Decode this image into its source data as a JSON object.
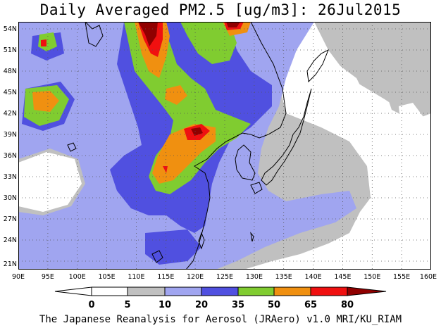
{
  "title": "Daily Averaged PM2.5 [ug/m3]: 26Jul2015",
  "footer": "The Japanese Reanalysis for Aerosol (JRAero) v1.0 MRI/KU_RIAM",
  "map": {
    "lon_range": [
      90,
      160
    ],
    "lat_range": [
      20,
      55
    ],
    "lon_labels": [
      "90E",
      "95E",
      "100E",
      "105E",
      "110E",
      "115E",
      "120E",
      "125E",
      "130E",
      "135E",
      "140E",
      "145E",
      "150E",
      "155E",
      "160E"
    ],
    "lat_labels": [
      "21N",
      "24N",
      "27N",
      "30N",
      "33N",
      "36N",
      "39N",
      "42N",
      "45N",
      "48N",
      "51N",
      "54N"
    ],
    "gridlines": "dotted"
  },
  "colorbar": {
    "levels": [
      "0",
      "5",
      "10",
      "20",
      "35",
      "50",
      "65",
      "80"
    ],
    "colors": {
      "lt0": "#ffffff",
      "c0_5": "#ffffff",
      "c5_10": "#c0c0c0",
      "c10_20": "#a0a5f0",
      "c20_35": "#5050e0",
      "c35_50": "#80cc30",
      "c50_65": "#f09010",
      "c65_80": "#f01010",
      "gt80": "#900000"
    }
  }
}
